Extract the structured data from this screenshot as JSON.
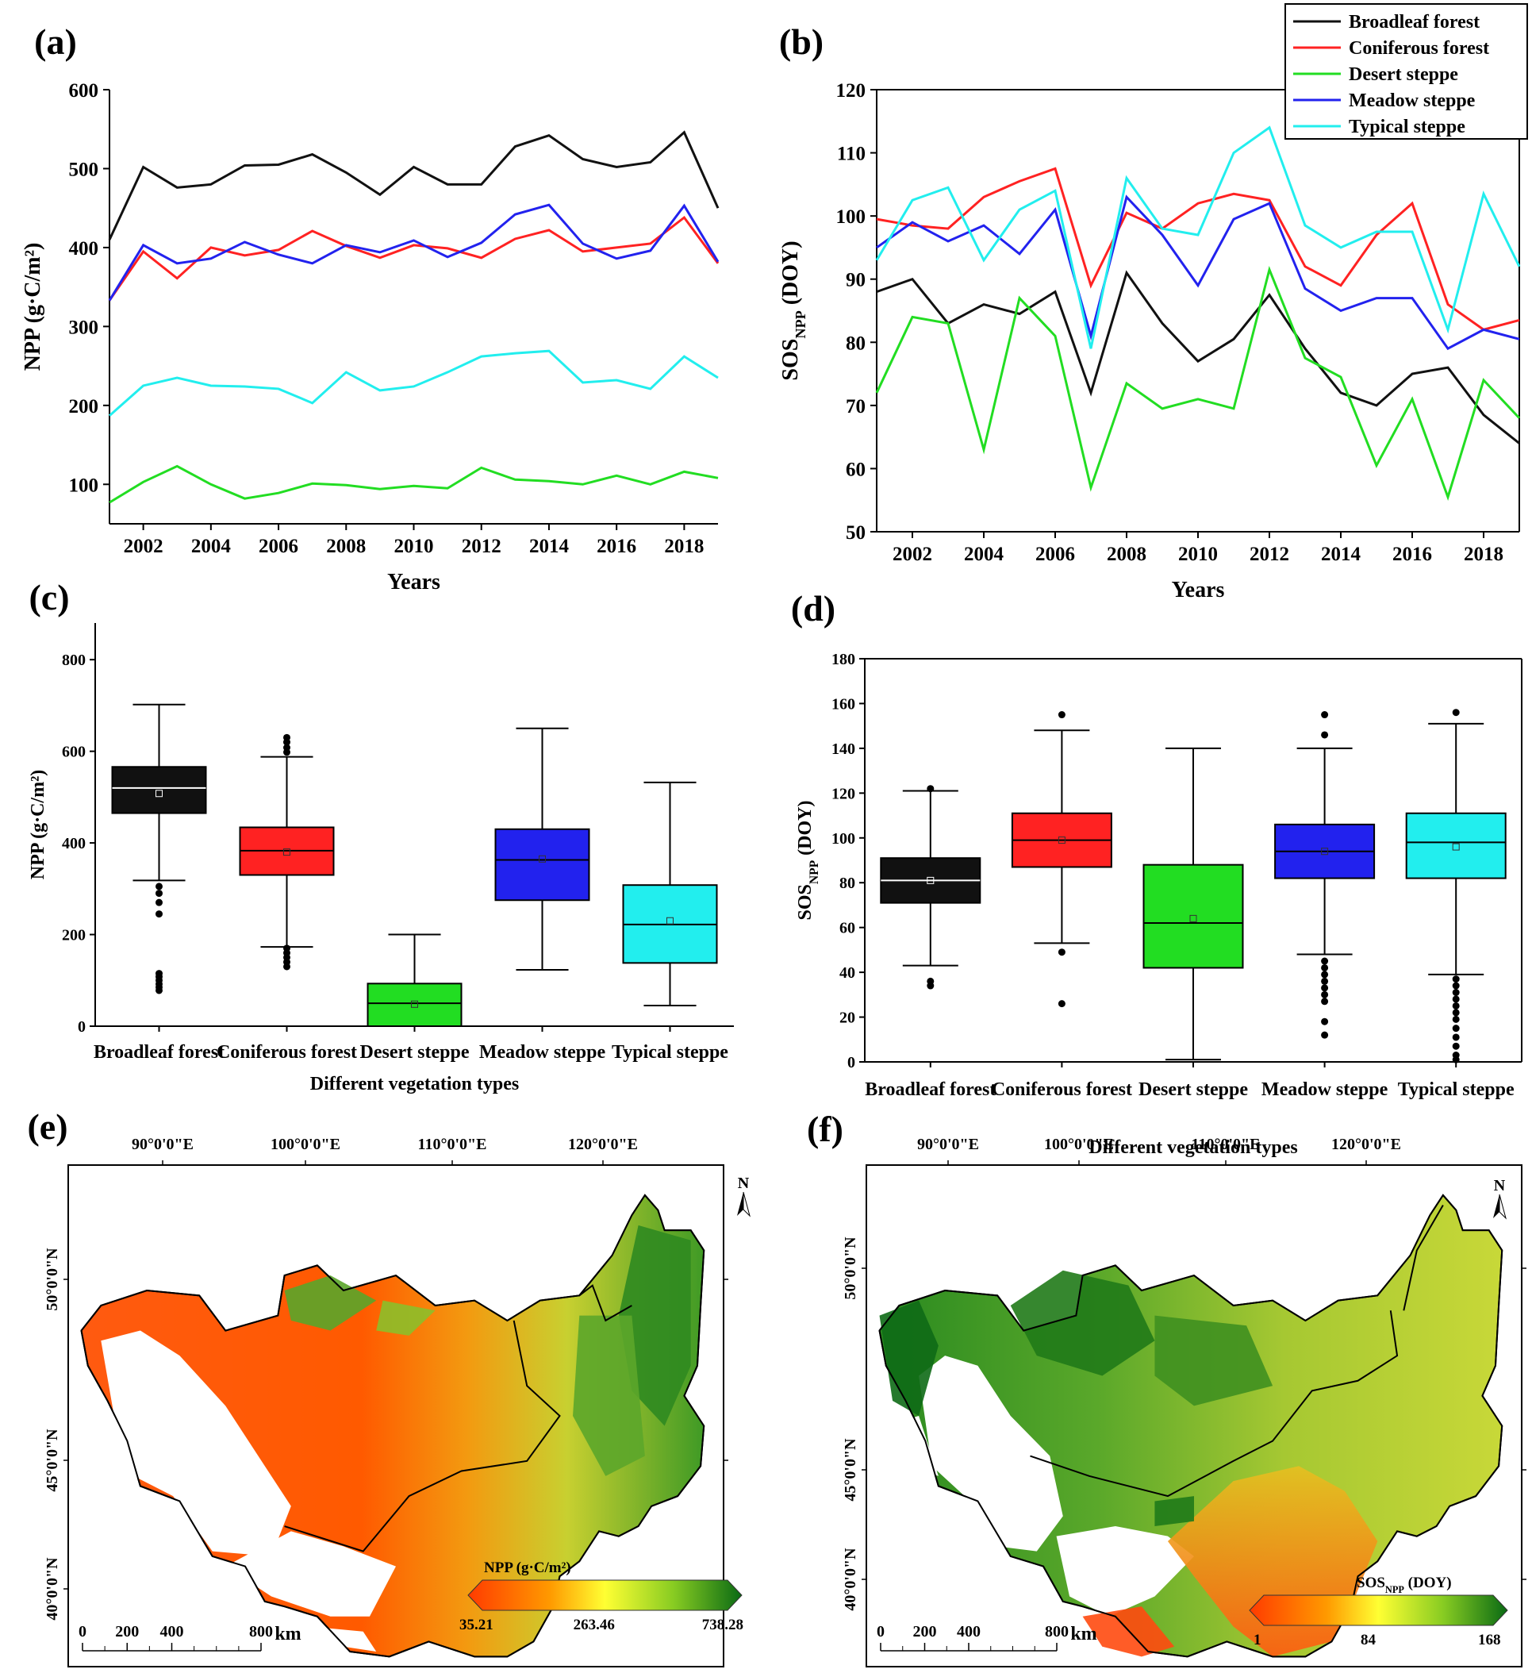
{
  "colors": {
    "Broadleaf forest": "#111111",
    "Coniferous forest": "#ff2222",
    "Desert steppe": "#22dd22",
    "Meadow steppe": "#2222ee",
    "Typical steppe": "#22eeee"
  },
  "chart_data": [
    {
      "id": "a",
      "type": "line",
      "panel_label": "(a)",
      "xlabel": "Years",
      "ylabel": "NPP (g·C/m²)",
      "ylim": [
        50,
        600
      ],
      "yticks": [
        100,
        200,
        300,
        400,
        500,
        600
      ],
      "xlim": [
        2001,
        2019
      ],
      "xticks": [
        2002,
        2004,
        2006,
        2008,
        2010,
        2012,
        2014,
        2016,
        2018
      ],
      "x": [
        2001,
        2002,
        2003,
        2004,
        2005,
        2006,
        2007,
        2008,
        2009,
        2010,
        2011,
        2012,
        2013,
        2014,
        2015,
        2016,
        2017,
        2018,
        2019
      ],
      "series": [
        {
          "name": "Broadleaf forest",
          "values": [
            410,
            502,
            476,
            480,
            504,
            505,
            518,
            495,
            467,
            502,
            480,
            480,
            528,
            542,
            512,
            502,
            508,
            546,
            450
          ]
        },
        {
          "name": "Coniferous forest",
          "values": [
            333,
            395,
            361,
            400,
            390,
            397,
            421,
            402,
            387,
            403,
            399,
            387,
            411,
            422,
            395,
            400,
            405,
            438,
            380
          ]
        },
        {
          "name": "Desert steppe",
          "values": [
            77,
            103,
            123,
            100,
            82,
            89,
            101,
            99,
            94,
            98,
            95,
            121,
            106,
            104,
            100,
            111,
            100,
            116,
            108
          ]
        },
        {
          "name": "Meadow steppe",
          "values": [
            333,
            403,
            380,
            386,
            407,
            391,
            380,
            403,
            394,
            409,
            388,
            406,
            442,
            454,
            405,
            386,
            396,
            453,
            382
          ]
        },
        {
          "name": "Typical steppe",
          "values": [
            187,
            225,
            235,
            225,
            224,
            221,
            203,
            242,
            219,
            224,
            242,
            262,
            266,
            269,
            229,
            232,
            221,
            262,
            235
          ]
        }
      ]
    },
    {
      "id": "b",
      "type": "line",
      "panel_label": "(b)",
      "xlabel": "Years",
      "ylabel_main": "SOS",
      "ylabel_sub": "NPP",
      "ylabel_rest": " (DOY)",
      "ylim": [
        50,
        120
      ],
      "yticks": [
        50,
        60,
        70,
        80,
        90,
        100,
        110,
        120
      ],
      "xlim": [
        2001,
        2019
      ],
      "xticks": [
        2002,
        2004,
        2006,
        2008,
        2010,
        2012,
        2014,
        2016,
        2018
      ],
      "x": [
        2001,
        2002,
        2003,
        2004,
        2005,
        2006,
        2007,
        2008,
        2009,
        2010,
        2011,
        2012,
        2013,
        2014,
        2015,
        2016,
        2017,
        2018,
        2019
      ],
      "legend": [
        "Broadleaf forest",
        "Coniferous forest",
        "Desert steppe",
        "Meadow steppe",
        "Typical steppe"
      ],
      "series": [
        {
          "name": "Broadleaf forest",
          "values": [
            88,
            90,
            83,
            86,
            84.5,
            88,
            72,
            91,
            83,
            77,
            80.5,
            87.5,
            79,
            72,
            70,
            75,
            76,
            68.5,
            64
          ]
        },
        {
          "name": "Coniferous forest",
          "values": [
            99.5,
            98.5,
            98,
            103,
            105.5,
            107.5,
            89,
            100.5,
            98,
            102,
            103.5,
            102.5,
            92,
            89,
            97,
            102,
            86,
            82,
            83.5
          ]
        },
        {
          "name": "Desert steppe",
          "values": [
            72,
            84,
            83,
            63,
            87,
            81,
            57,
            73.5,
            69.5,
            71,
            69.5,
            91.5,
            77.5,
            74.5,
            60.5,
            71,
            55.5,
            74,
            68
          ]
        },
        {
          "name": "Meadow steppe",
          "values": [
            95,
            99,
            96,
            98.5,
            94,
            101,
            81,
            103,
            97,
            89,
            99.5,
            102,
            88.5,
            85,
            87,
            87,
            79,
            82,
            80.5
          ]
        },
        {
          "name": "Typical steppe",
          "values": [
            93,
            102.5,
            104.5,
            93,
            101,
            104,
            79,
            106,
            98,
            97,
            110,
            114,
            98.5,
            95,
            97.5,
            97.5,
            82,
            103.5,
            92
          ]
        }
      ]
    },
    {
      "id": "c",
      "type": "box",
      "panel_label": "(c)",
      "xlabel": "Different vegetation types",
      "ylabel": "NPP (g·C/m²)",
      "ylim": [
        0,
        880
      ],
      "yticks": [
        0,
        200,
        400,
        600,
        800
      ],
      "categories": [
        "Broadleaf forest",
        "Coniferous forest",
        "Desert steppe",
        "Meadow steppe",
        "Typical steppe"
      ],
      "boxes": [
        {
          "name": "Broadleaf forest",
          "min": 318,
          "q1": 465,
          "median": 520,
          "q3": 566,
          "max": 702,
          "mean": 508,
          "outliers": [
            305,
            290,
            270,
            245,
            115,
            108,
            100,
            92,
            85,
            78
          ]
        },
        {
          "name": "Coniferous forest",
          "min": 173,
          "q1": 330,
          "median": 383,
          "q3": 434,
          "max": 588,
          "mean": 380,
          "outliers": [
            630,
            620,
            608,
            598,
            170,
            160,
            150,
            140,
            130
          ]
        },
        {
          "name": "Desert steppe",
          "min": 0,
          "q1": 0,
          "median": 50,
          "q3": 93,
          "max": 200,
          "mean": 48,
          "outliers": []
        },
        {
          "name": "Meadow steppe",
          "min": 123,
          "q1": 275,
          "median": 363,
          "q3": 430,
          "max": 650,
          "mean": 365,
          "outliers": []
        },
        {
          "name": "Typical steppe",
          "min": 45,
          "q1": 138,
          "median": 222,
          "q3": 308,
          "max": 532,
          "mean": 230,
          "outliers": []
        }
      ]
    },
    {
      "id": "d",
      "type": "box",
      "panel_label": "(d)",
      "xlabel": "Different vegetation types",
      "ylabel_main": "SOS",
      "ylabel_sub": "NPP",
      "ylabel_rest": " (DOY)",
      "ylim": [
        0,
        180
      ],
      "yticks": [
        0,
        20,
        40,
        60,
        80,
        100,
        120,
        140,
        160,
        180
      ],
      "categories": [
        "Broadleaf forest",
        "Coniferous forest",
        "Desert steppe",
        "Meadow steppe",
        "Typical steppe"
      ],
      "boxes": [
        {
          "name": "Broadleaf forest",
          "min": 43,
          "q1": 71,
          "median": 81,
          "q3": 91,
          "max": 121,
          "mean": 81,
          "outliers": [
            122,
            36,
            34
          ]
        },
        {
          "name": "Coniferous forest",
          "min": 53,
          "q1": 87,
          "median": 99,
          "q3": 111,
          "max": 148,
          "mean": 99,
          "outliers": [
            155,
            49,
            26
          ]
        },
        {
          "name": "Desert steppe",
          "min": 1,
          "q1": 42,
          "median": 62,
          "q3": 88,
          "max": 140,
          "mean": 64,
          "outliers": []
        },
        {
          "name": "Meadow steppe",
          "min": 48,
          "q1": 82,
          "median": 94,
          "q3": 106,
          "max": 140,
          "mean": 94,
          "outliers": [
            155,
            146,
            45,
            42,
            39,
            36,
            33,
            30,
            27,
            18,
            12
          ]
        },
        {
          "name": "Typical steppe",
          "min": 39,
          "q1": 82,
          "median": 98,
          "q3": 111,
          "max": 151,
          "mean": 96,
          "outliers": [
            156,
            37,
            34,
            31,
            28,
            25,
            22,
            19,
            15,
            11,
            7,
            3,
            1
          ]
        }
      ]
    }
  ],
  "maps": [
    {
      "id": "e",
      "panel_label": "(e)",
      "lon_labels": [
        "90°0'0\"E",
        "100°0'0\"E",
        "110°0'0\"E",
        "120°0'0\"E"
      ],
      "lat_labels": [
        "50°0'0\"N",
        "45°0'0\"N",
        "40°0'0\"N"
      ],
      "north": "N",
      "scale_ticks": [
        "0",
        "200",
        "400",
        "800"
      ],
      "scale_unit": "km",
      "colorbar_title": "NPP (g·C/m²)",
      "colorbar_values": [
        "35.21",
        "263.46",
        "738.28"
      ]
    },
    {
      "id": "f",
      "panel_label": "(f)",
      "lon_labels": [
        "90°0'0\"E",
        "100°0'0\"E",
        "110°0'0\"E",
        "120°0'0\"E"
      ],
      "lat_labels": [
        "50°0'0\"N",
        "45°0'0\"N",
        "40°0'0\"N"
      ],
      "north": "N",
      "scale_ticks": [
        "0",
        "200",
        "400",
        "800"
      ],
      "scale_unit": "km",
      "colorbar_title_main": "SOS",
      "colorbar_title_sub": "NPP",
      "colorbar_title_rest": " (DOY)",
      "colorbar_values": [
        "1",
        "84",
        "168"
      ]
    }
  ]
}
